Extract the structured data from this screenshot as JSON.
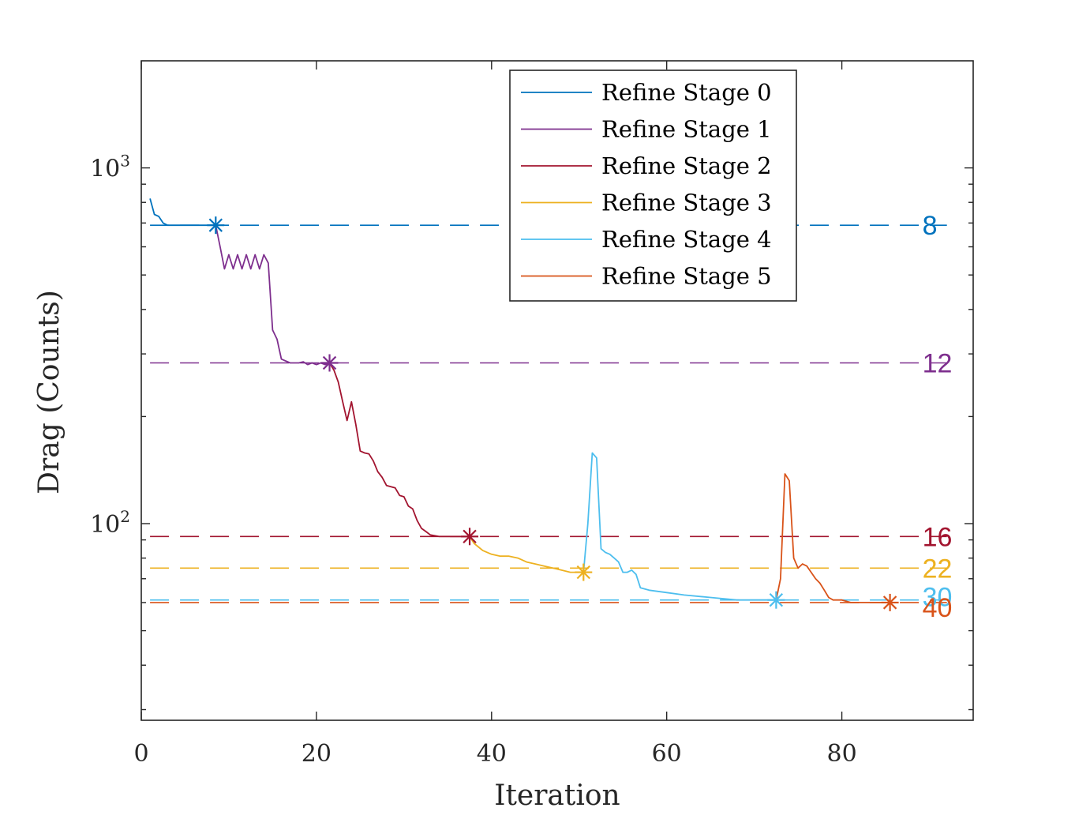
{
  "chart_data": {
    "type": "line",
    "title": "",
    "xlabel": "Iteration",
    "ylabel": "Drag (Counts)",
    "xlim": [
      0,
      95
    ],
    "ylim": [
      28,
      2000
    ],
    "yscale": "log",
    "xticks": [
      0,
      20,
      40,
      60,
      80
    ],
    "xtick_labels": [
      "0",
      "20",
      "40",
      "60",
      "80"
    ],
    "yticks_major": [
      {
        "value": 100,
        "base": "10",
        "exp": "2"
      },
      {
        "value": 1000,
        "base": "10",
        "exp": "3"
      }
    ],
    "yticks_minor": [
      30,
      40,
      50,
      60,
      70,
      80,
      90,
      200,
      300,
      400,
      500,
      600,
      700,
      800,
      900
    ],
    "grid": false,
    "legend_position": "top-right",
    "series": [
      {
        "name": "Refine Stage 0",
        "color": "#0072BD",
        "x": [
          1,
          1.5,
          2,
          2.5,
          3,
          4,
          5,
          6,
          7,
          8,
          8.5
        ],
        "y": [
          820,
          740,
          730,
          700,
          690,
          690,
          690,
          690,
          690,
          690,
          690
        ],
        "marker": {
          "x": 8.5,
          "y": 690
        }
      },
      {
        "name": "Refine Stage 1",
        "color": "#7E2F8E",
        "x": [
          8.5,
          9,
          9.5,
          10,
          10.5,
          11,
          11.5,
          12,
          12.5,
          13,
          13.5,
          14,
          14.5,
          15,
          15.5,
          16,
          17,
          18,
          18.5,
          19,
          19.5,
          20,
          20.5,
          21,
          21.5
        ],
        "y": [
          690,
          600,
          520,
          570,
          520,
          570,
          520,
          570,
          520,
          570,
          520,
          570,
          540,
          350,
          330,
          290,
          283,
          283,
          285,
          280,
          283,
          280,
          283,
          280,
          283
        ],
        "marker": {
          "x": 21.5,
          "y": 283
        }
      },
      {
        "name": "Refine Stage 2",
        "color": "#A2142F",
        "x": [
          21.5,
          22,
          22.5,
          23,
          23.5,
          24,
          24.5,
          25,
          25.5,
          26,
          26.5,
          27,
          27.5,
          28,
          28.5,
          29,
          29.5,
          30,
          30.5,
          31,
          31.5,
          32,
          32.5,
          33,
          34,
          35,
          36,
          37,
          37.5
        ],
        "y": [
          283,
          270,
          250,
          220,
          195,
          220,
          190,
          160,
          158,
          157,
          150,
          140,
          135,
          128,
          127,
          126,
          120,
          119,
          112,
          110,
          102,
          97,
          95,
          93,
          92,
          92,
          92,
          92,
          92
        ],
        "marker": {
          "x": 37.5,
          "y": 92
        }
      },
      {
        "name": "Refine Stage 3",
        "color": "#EDB120",
        "x": [
          37.5,
          38,
          38.5,
          39,
          40,
          41,
          42,
          43,
          44,
          45,
          46,
          47,
          48,
          49,
          50.5
        ],
        "y": [
          92,
          88,
          86,
          84,
          82,
          81,
          81,
          80,
          78,
          77,
          76,
          75,
          74,
          73,
          73
        ],
        "marker": {
          "x": 50.5,
          "y": 73
        }
      },
      {
        "name": "Refine Stage 4",
        "color": "#4DBEEE",
        "x": [
          50.5,
          51,
          51.5,
          52,
          52.5,
          53,
          53.5,
          54,
          54.5,
          55,
          55.5,
          56,
          56.5,
          57,
          58,
          60,
          62,
          65,
          68,
          70,
          72.5
        ],
        "y": [
          73,
          100,
          158,
          153,
          85,
          83,
          82,
          80,
          78,
          73,
          73,
          74,
          72,
          66,
          65,
          64,
          63,
          62,
          61,
          61,
          61
        ],
        "marker": {
          "x": 72.5,
          "y": 61
        }
      },
      {
        "name": "Refine Stage 5",
        "color": "#D95319",
        "x": [
          72.5,
          73,
          73.5,
          74,
          74.5,
          75,
          75.5,
          76,
          76.5,
          77,
          77.5,
          78,
          78.5,
          79,
          79.5,
          80,
          81,
          82,
          83,
          84,
          85.5
        ],
        "y": [
          61,
          70,
          138,
          132,
          80,
          75,
          77,
          76,
          73,
          70,
          68,
          65,
          62,
          61,
          61,
          61,
          60,
          60,
          60,
          60,
          60
        ],
        "marker": {
          "x": 85.5,
          "y": 60
        }
      }
    ],
    "reference_lines": [
      {
        "y": 690,
        "color": "#0072BD",
        "label": "8"
      },
      {
        "y": 283,
        "color": "#7E2F8E",
        "label": "12"
      },
      {
        "y": 92,
        "color": "#A2142F",
        "label": "16"
      },
      {
        "y": 75,
        "color": "#EDB120",
        "label": "22"
      },
      {
        "y": 61,
        "color": "#4DBEEE",
        "label": "30"
      },
      {
        "y": 60,
        "color": "#D95319",
        "label": "40"
      }
    ]
  }
}
